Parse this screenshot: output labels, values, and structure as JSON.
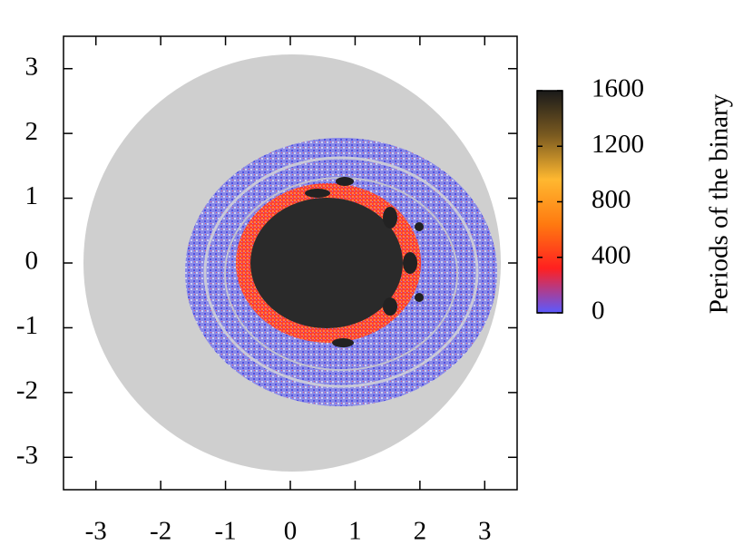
{
  "chart_data": {
    "type": "heatmap",
    "xlim": [
      -3.5,
      3.5
    ],
    "ylim": [
      -3.5,
      3.5
    ],
    "xticks": [
      -3,
      -2,
      -1,
      0,
      1,
      2,
      3
    ],
    "yticks": [
      -3,
      -2,
      -1,
      0,
      1,
      2,
      3
    ],
    "colorbar": {
      "label": "Periods of the binary",
      "lim": [
        0,
        1600
      ],
      "ticks": [
        0,
        400,
        800,
        1200,
        1600
      ],
      "colors": [
        "#5a5aff",
        "#ff2020",
        "#ff7a10",
        "#ffb830",
        "#7a5a20",
        "#1a1a1a"
      ]
    }
  }
}
